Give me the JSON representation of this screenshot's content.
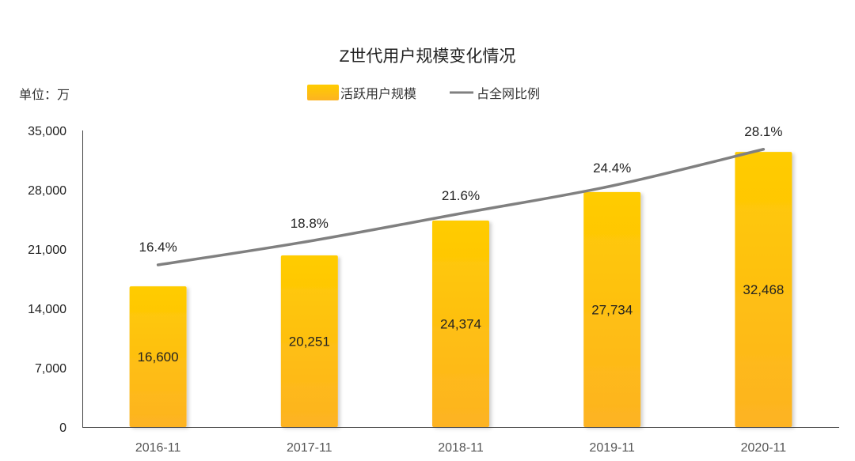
{
  "chart_data": {
    "type": "bar+line",
    "title": "Z世代用户规模变化情况",
    "unit_label": "单位：万",
    "categories": [
      "2016-11",
      "2017-11",
      "2018-11",
      "2019-11",
      "2020-11"
    ],
    "series": [
      {
        "name": "活跃用户规模",
        "type": "bar",
        "axis": "left",
        "values": [
          16600,
          20251,
          24374,
          27734,
          32468
        ],
        "labels": [
          "16,600",
          "20,251",
          "24,374",
          "27,734",
          "32,468"
        ]
      },
      {
        "name": "占全网比例",
        "type": "line",
        "axis": "right-hidden",
        "values": [
          16.4,
          18.8,
          21.6,
          24.4,
          28.1
        ],
        "labels": [
          "16.4%",
          "18.8%",
          "21.6%",
          "24.4%",
          "28.1%"
        ]
      }
    ],
    "ylim": [
      0,
      35000
    ],
    "yticks": [
      "0",
      "7,000",
      "14,000",
      "21,000",
      "28,000",
      "35,000"
    ],
    "ytick_values": [
      0,
      7000,
      14000,
      21000,
      28000,
      35000
    ],
    "y2lim": [
      0,
      30
    ],
    "grid": false,
    "legend": "top-center",
    "colors": {
      "bar_top": "#ffcc00",
      "bar_bottom": "#fdb322",
      "line": "#808080",
      "axis": "#404040",
      "text": "#222222"
    }
  }
}
